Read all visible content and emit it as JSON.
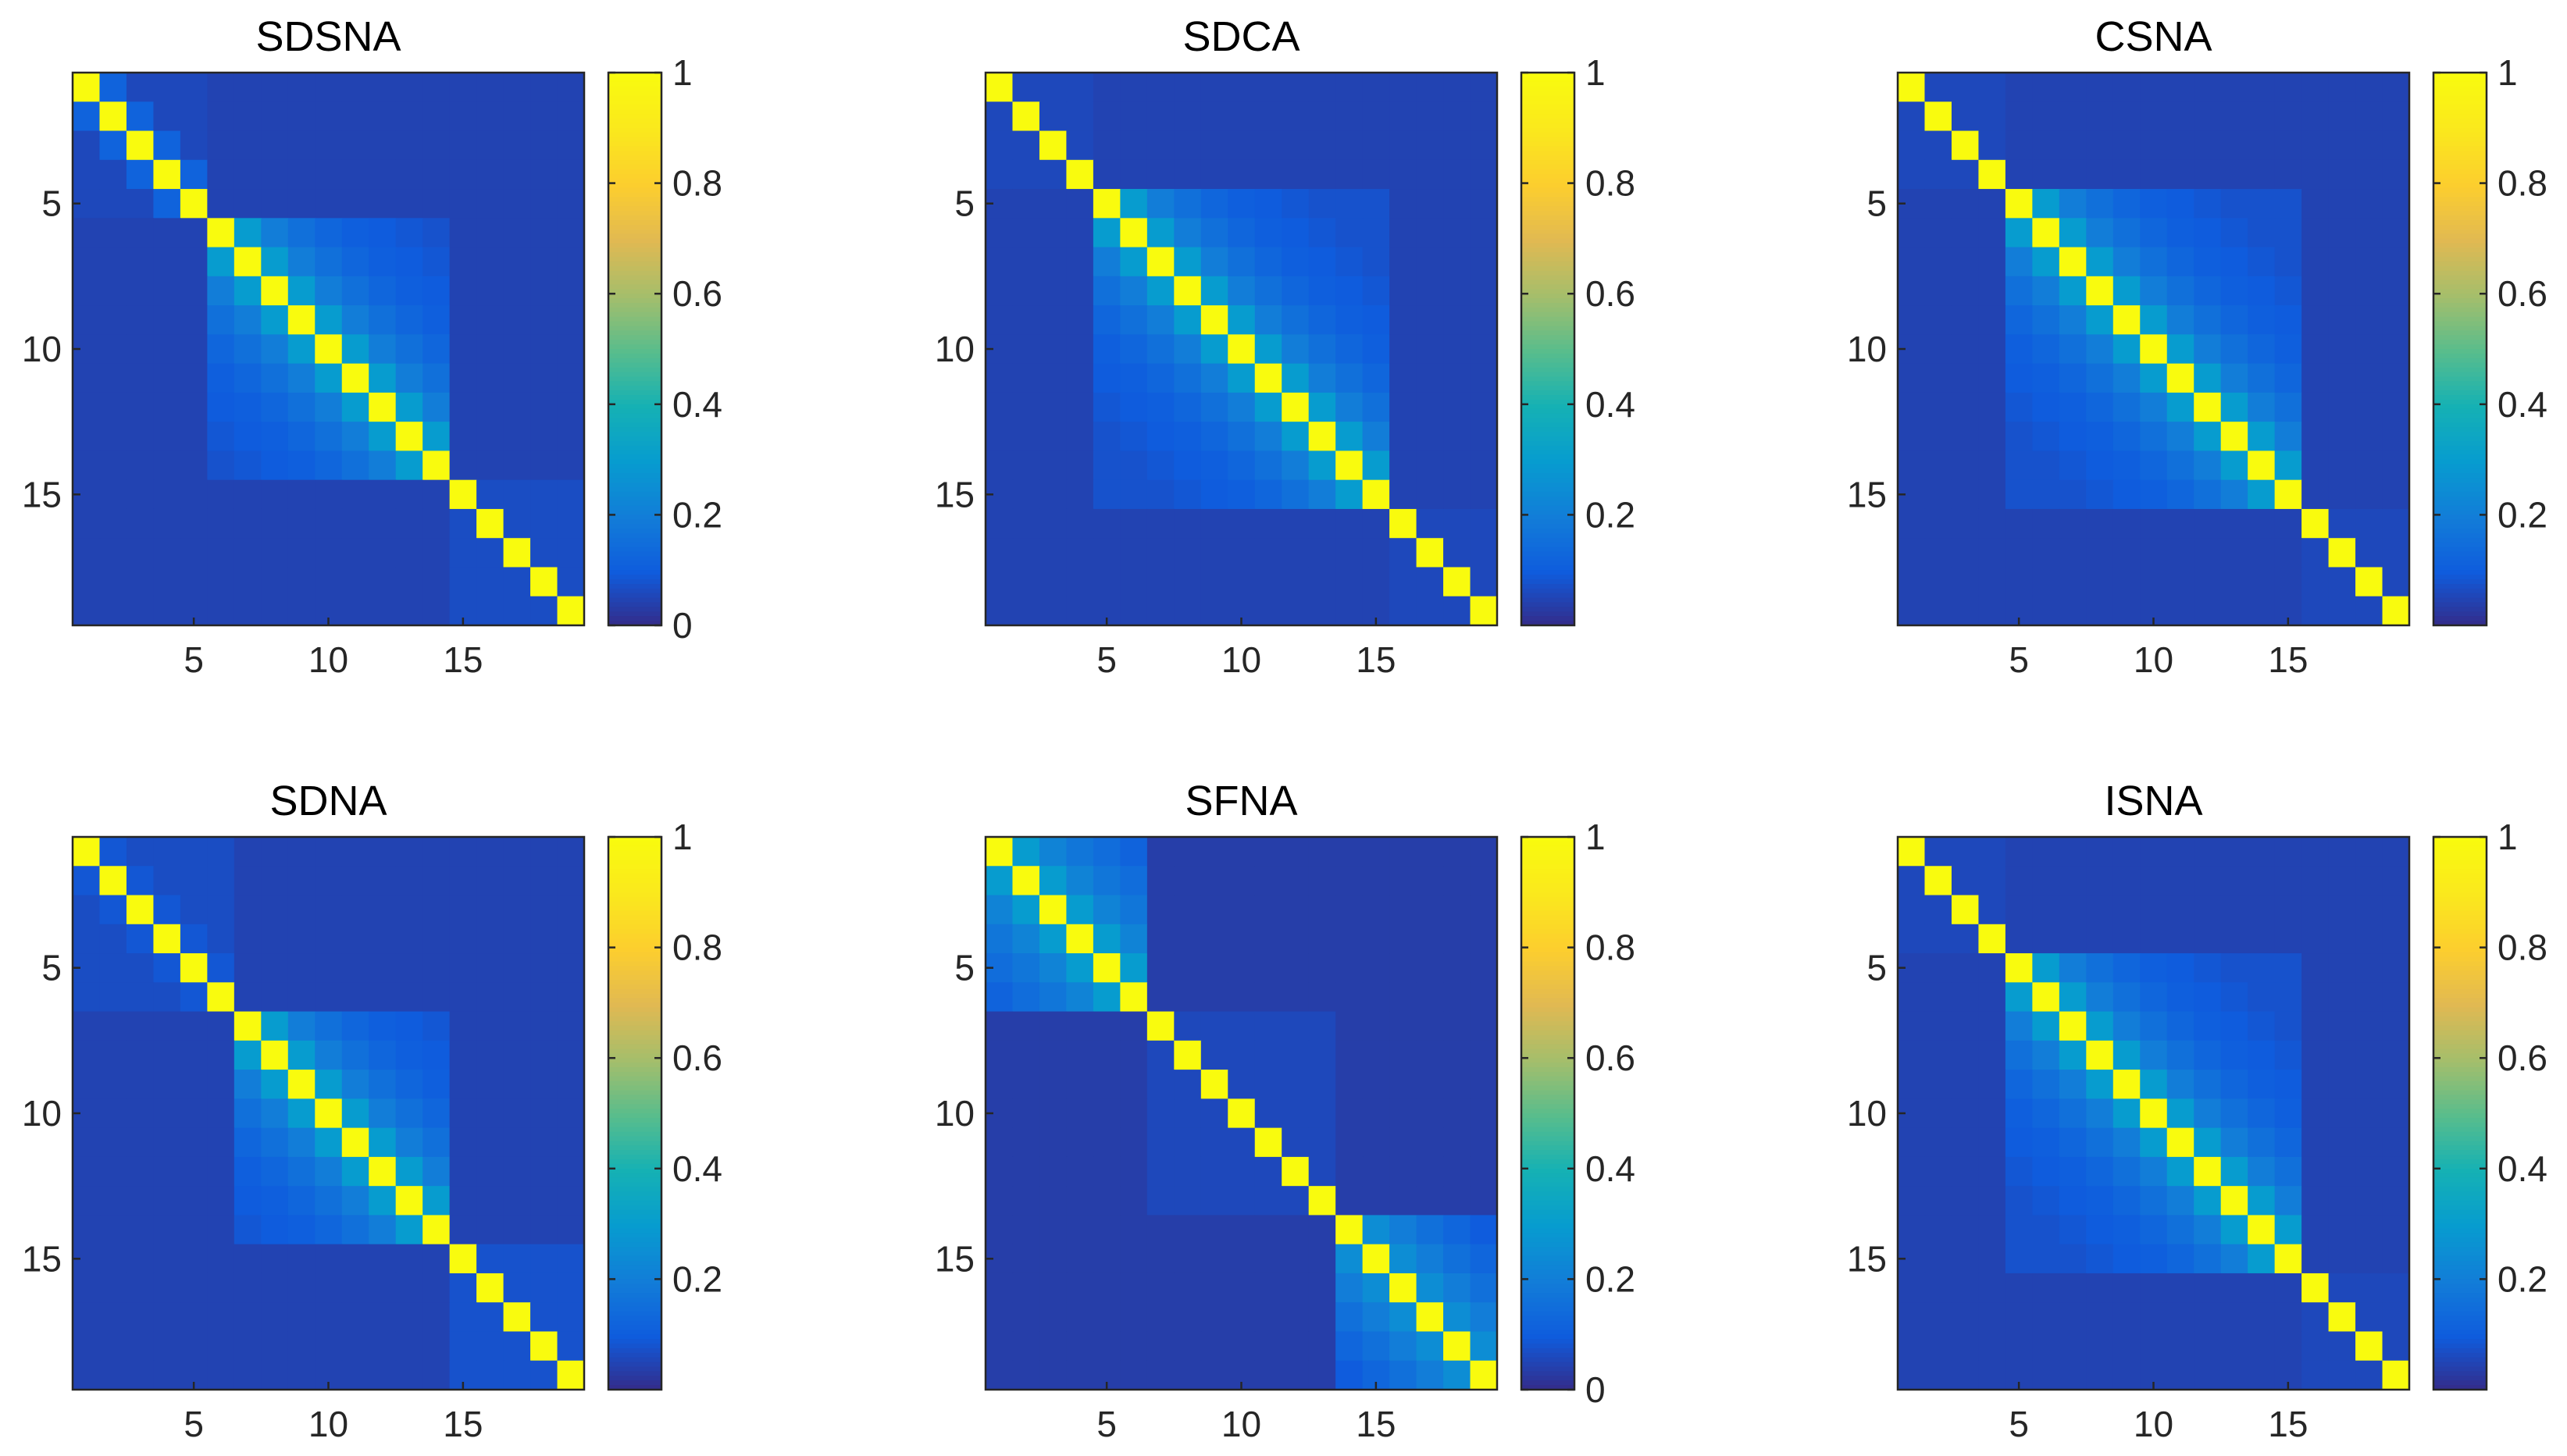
{
  "chart_data": [
    {
      "type": "heatmap",
      "title": "SDSNA",
      "size": 19,
      "xticks": [
        5,
        10,
        15
      ],
      "yticks": [
        5,
        10,
        15
      ],
      "clim": [
        0,
        1
      ],
      "colorbar_ticks": [
        0,
        0.2,
        0.4,
        0.6,
        0.8,
        1
      ],
      "colorbar_labels": [
        "0",
        "0.2",
        "0.4",
        "0.6",
        "0.8",
        "1"
      ],
      "diag": 1,
      "background": 0.05,
      "blocks": [
        {
          "start": 1,
          "end": 5,
          "values": [
            0.12,
            0.06
          ]
        },
        {
          "start": 6,
          "end": 14,
          "values": [
            0.3,
            0.2,
            0.16,
            0.13,
            0.11,
            0.1,
            0.09,
            0.08
          ]
        },
        {
          "start": 15,
          "end": 19,
          "values": [
            0.07
          ]
        }
      ]
    },
    {
      "type": "heatmap",
      "title": "SDCA",
      "size": 19,
      "xticks": [
        5,
        10,
        15
      ],
      "yticks": [
        5,
        10,
        15
      ],
      "clim": [
        0,
        1
      ],
      "colorbar_ticks": [
        0.2,
        0.4,
        0.6,
        0.8,
        1
      ],
      "colorbar_labels": [
        "0.2",
        "0.4",
        "0.6",
        "0.8",
        "1"
      ],
      "diag": 1,
      "background": 0.05,
      "blocks": [
        {
          "start": 1,
          "end": 4,
          "values": [
            0.06
          ]
        },
        {
          "start": 5,
          "end": 15,
          "values": [
            0.3,
            0.2,
            0.16,
            0.13,
            0.11,
            0.1,
            0.09,
            0.08
          ]
        },
        {
          "start": 16,
          "end": 19,
          "values": [
            0.06
          ]
        }
      ]
    },
    {
      "type": "heatmap",
      "title": "CSNA",
      "size": 19,
      "xticks": [
        5,
        10,
        15
      ],
      "yticks": [
        5,
        10,
        15
      ],
      "clim": [
        0,
        1
      ],
      "colorbar_ticks": [
        0.2,
        0.4,
        0.6,
        0.8,
        1
      ],
      "colorbar_labels": [
        "0.2",
        "0.4",
        "0.6",
        "0.8",
        "1"
      ],
      "diag": 1,
      "background": 0.05,
      "blocks": [
        {
          "start": 1,
          "end": 4,
          "values": [
            0.06
          ]
        },
        {
          "start": 5,
          "end": 15,
          "values": [
            0.3,
            0.2,
            0.16,
            0.13,
            0.11,
            0.1,
            0.09,
            0.08
          ]
        },
        {
          "start": 16,
          "end": 19,
          "values": [
            0.06
          ]
        }
      ]
    },
    {
      "type": "heatmap",
      "title": "SDNA",
      "size": 19,
      "xticks": [
        5,
        10,
        15
      ],
      "yticks": [
        5,
        10,
        15
      ],
      "clim": [
        0,
        1
      ],
      "colorbar_ticks": [
        0.2,
        0.4,
        0.6,
        0.8,
        1
      ],
      "colorbar_labels": [
        "0.2",
        "0.4",
        "0.6",
        "0.8",
        "1"
      ],
      "diag": 1,
      "background": 0.05,
      "blocks": [
        {
          "start": 1,
          "end": 6,
          "values": [
            0.09,
            0.07
          ]
        },
        {
          "start": 7,
          "end": 14,
          "values": [
            0.3,
            0.2,
            0.16,
            0.13,
            0.11,
            0.1,
            0.09
          ]
        },
        {
          "start": 15,
          "end": 19,
          "values": [
            0.08
          ]
        }
      ]
    },
    {
      "type": "heatmap",
      "title": "SFNA",
      "size": 19,
      "xticks": [
        5,
        10,
        15
      ],
      "yticks": [
        5,
        10,
        15
      ],
      "clim": [
        0,
        1
      ],
      "colorbar_ticks": [
        0,
        0.2,
        0.4,
        0.6,
        0.8,
        1
      ],
      "colorbar_labels": [
        "0",
        "0.2",
        "0.4",
        "0.6",
        "0.8",
        "1"
      ],
      "diag": 1,
      "background": 0.04,
      "blocks": [
        {
          "start": 1,
          "end": 6,
          "values": [
            0.3,
            0.22,
            0.18,
            0.15,
            0.12
          ]
        },
        {
          "start": 7,
          "end": 13,
          "values": [
            0.06
          ]
        },
        {
          "start": 14,
          "end": 19,
          "values": [
            0.25,
            0.2,
            0.16,
            0.13,
            0.1
          ]
        }
      ]
    },
    {
      "type": "heatmap",
      "title": "ISNA",
      "size": 19,
      "xticks": [
        5,
        10,
        15
      ],
      "yticks": [
        5,
        10,
        15
      ],
      "clim": [
        0,
        1
      ],
      "colorbar_ticks": [
        0.2,
        0.4,
        0.6,
        0.8,
        1
      ],
      "colorbar_labels": [
        "0.2",
        "0.4",
        "0.6",
        "0.8",
        "1"
      ],
      "diag": 1,
      "background": 0.05,
      "blocks": [
        {
          "start": 1,
          "end": 4,
          "values": [
            0.06
          ]
        },
        {
          "start": 5,
          "end": 15,
          "values": [
            0.3,
            0.2,
            0.16,
            0.13,
            0.11,
            0.1,
            0.09,
            0.08
          ]
        },
        {
          "start": 16,
          "end": 19,
          "values": [
            0.06
          ]
        }
      ]
    }
  ]
}
